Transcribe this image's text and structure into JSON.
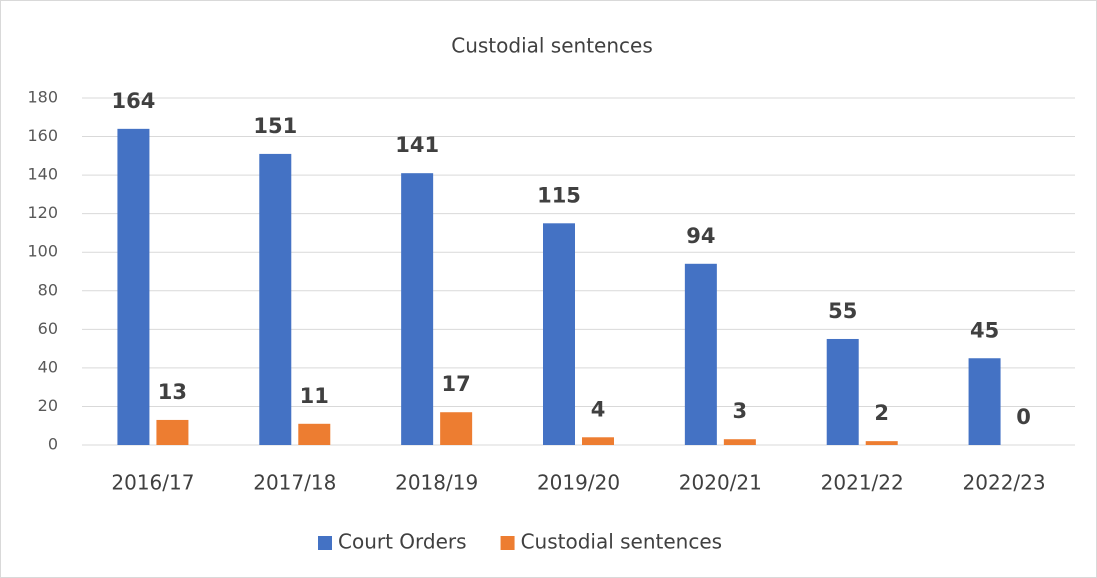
{
  "chart_data": {
    "type": "bar",
    "title": "Custodial sentences",
    "categories": [
      "2016/17",
      "2017/18",
      "2018/19",
      "2019/20",
      "2020/21",
      "2021/22",
      "2022/23"
    ],
    "series": [
      {
        "name": "Court Orders",
        "color": "#4472c4",
        "values": [
          164,
          151,
          141,
          115,
          94,
          55,
          45
        ]
      },
      {
        "name": "Custodial sentences",
        "color": "#ed7d31",
        "values": [
          13,
          11,
          17,
          4,
          3,
          2,
          0
        ]
      }
    ],
    "ylim": [
      0,
      180
    ],
    "yticks": [
      0,
      20,
      40,
      60,
      80,
      100,
      120,
      140,
      160,
      180
    ],
    "grid": true,
    "legend": "bottom"
  }
}
